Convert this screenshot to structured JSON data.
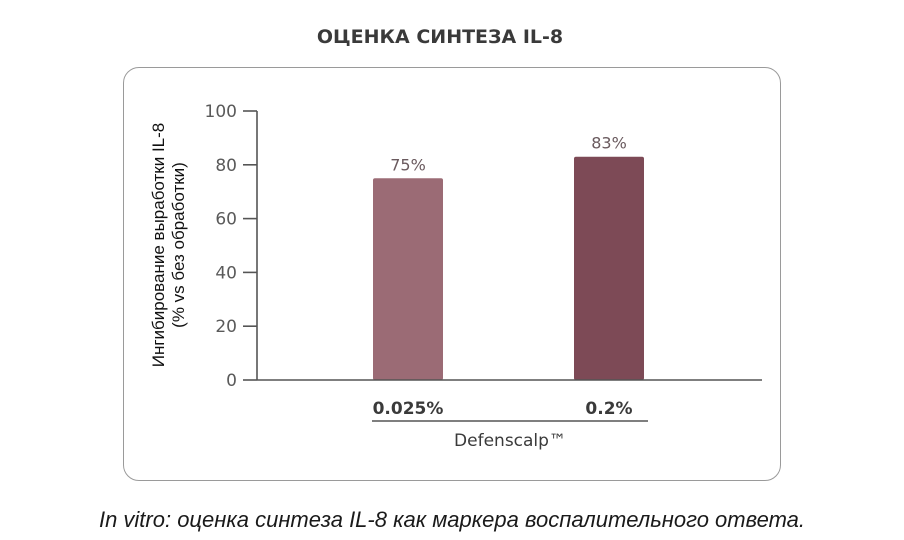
{
  "chart_data": {
    "type": "bar",
    "title": "ОЦЕНКА СИНТЕЗА IL-8",
    "ylabel_line1": "Ингибирование выработки IL-8",
    "ylabel_line2": "(% vs без обработки)",
    "xlabel": "Defenscalp™",
    "categories": [
      "0.025%",
      "0.2%"
    ],
    "values": [
      75,
      83
    ],
    "data_labels": [
      "75%",
      "83%"
    ],
    "ylim": [
      0,
      100
    ],
    "yticks": [
      0,
      20,
      40,
      60,
      80,
      100
    ],
    "colors": [
      "#9b6b75",
      "#7d4a56"
    ],
    "grid": false
  },
  "caption": "In vitro: оценка синтеза IL-8 как маркера воспалительного ответа."
}
